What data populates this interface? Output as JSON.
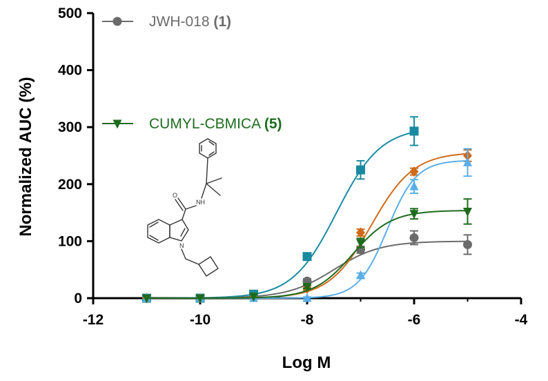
{
  "chart_data": {
    "type": "line",
    "xlabel": "Log M",
    "ylabel": "Normalized AUC (%)",
    "xlim": [
      -12,
      -4
    ],
    "ylim": [
      0,
      500
    ],
    "xticks": [
      "-12",
      "-10",
      "-8",
      "-6",
      "-4"
    ],
    "yticks": [
      "0",
      "100",
      "200",
      "300",
      "400",
      "500"
    ],
    "grid": false,
    "legend_position": "top-left",
    "legend": [
      {
        "name": "JWH-018",
        "tag": "(1)",
        "color": "#6b6b6b",
        "marker": "circle",
        "series_index": 0
      },
      {
        "name": "CUMYL-CBMICA",
        "tag": "(5)",
        "color": "#1e6b1e",
        "marker": "triangle-down",
        "series_index": 4
      }
    ],
    "series": [
      {
        "color": "#6b6b6b",
        "marker": "circle",
        "x": [
          -11,
          -10,
          -9,
          -8,
          -7,
          -6,
          -5
        ],
        "y": [
          0,
          0,
          5,
          30,
          85,
          106,
          94
        ],
        "err": [
          0,
          0,
          0,
          4,
          6,
          12,
          17
        ],
        "fit": {
          "bottom": 0,
          "top": 100,
          "logec50": -7.5,
          "hill": 1.0
        }
      },
      {
        "color": "#1a8aa0",
        "marker": "square",
        "x": [
          -11,
          -10,
          -9,
          -8,
          -7,
          -6
        ],
        "y": [
          0,
          0,
          7,
          73,
          225,
          293
        ],
        "err": [
          0,
          0,
          0,
          4,
          16,
          25
        ],
        "fit": {
          "bottom": 0,
          "top": 300,
          "logec50": -7.45,
          "hill": 1.05
        }
      },
      {
        "color": "#cf6a1a",
        "marker": "diamond",
        "x": [
          -11,
          -10,
          -9,
          -8,
          -7,
          -6,
          -5
        ],
        "y": [
          0,
          0,
          2,
          17,
          115,
          222,
          250
        ],
        "err": [
          0,
          0,
          0,
          3,
          6,
          6,
          10
        ],
        "fit": {
          "bottom": 0,
          "top": 256,
          "logec50": -6.8,
          "hill": 1.1
        }
      },
      {
        "color": "#5aaee8",
        "marker": "triangle-up",
        "x": [
          -11,
          -10,
          -9,
          -8,
          -7,
          -6,
          -5
        ],
        "y": [
          0,
          0,
          0,
          0,
          40,
          196,
          238
        ],
        "err": [
          0,
          0,
          0,
          2,
          4,
          12,
          24
        ],
        "fit": {
          "bottom": 0,
          "top": 242,
          "logec50": -6.5,
          "hill": 1.6
        }
      },
      {
        "color": "#1e6b1e",
        "marker": "triangle-down",
        "x": [
          -11,
          -10,
          -9,
          -8,
          -7,
          -6,
          -5
        ],
        "y": [
          0,
          0,
          3,
          20,
          97,
          148,
          152
        ],
        "err": [
          0,
          0,
          0,
          3,
          8,
          9,
          22
        ],
        "fit": {
          "bottom": 0,
          "top": 154,
          "logec50": -7.15,
          "hill": 1.2
        }
      }
    ]
  }
}
